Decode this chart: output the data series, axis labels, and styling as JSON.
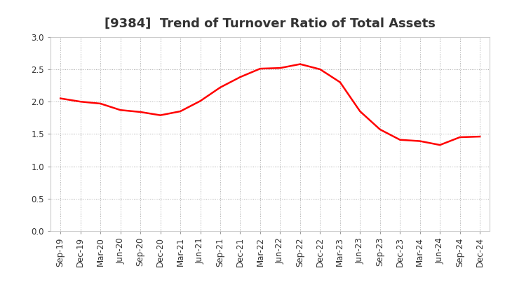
{
  "title": "[9384]  Trend of Turnover Ratio of Total Assets",
  "x_labels": [
    "Sep-19",
    "Dec-19",
    "Mar-20",
    "Jun-20",
    "Sep-20",
    "Dec-20",
    "Mar-21",
    "Jun-21",
    "Sep-21",
    "Dec-21",
    "Mar-22",
    "Jun-22",
    "Sep-22",
    "Dec-22",
    "Mar-23",
    "Jun-23",
    "Sep-23",
    "Dec-23",
    "Mar-24",
    "Jun-24",
    "Sep-24",
    "Dec-24"
  ],
  "y_values": [
    2.05,
    2.0,
    1.97,
    1.87,
    1.84,
    1.79,
    1.85,
    2.01,
    2.22,
    2.38,
    2.51,
    2.52,
    2.58,
    2.5,
    2.3,
    1.85,
    1.57,
    1.41,
    1.39,
    1.33,
    1.45,
    1.46
  ],
  "line_color": "#FF0000",
  "line_width": 1.8,
  "ylim": [
    0.0,
    3.0
  ],
  "yticks": [
    0.0,
    0.5,
    1.0,
    1.5,
    2.0,
    2.5,
    3.0
  ],
  "bg_color": "#FFFFFF",
  "plot_bg_color": "#FFFFFF",
  "grid_color": "#AAAAAA",
  "title_fontsize": 13,
  "title_color": "#333333",
  "tick_fontsize": 8.5
}
